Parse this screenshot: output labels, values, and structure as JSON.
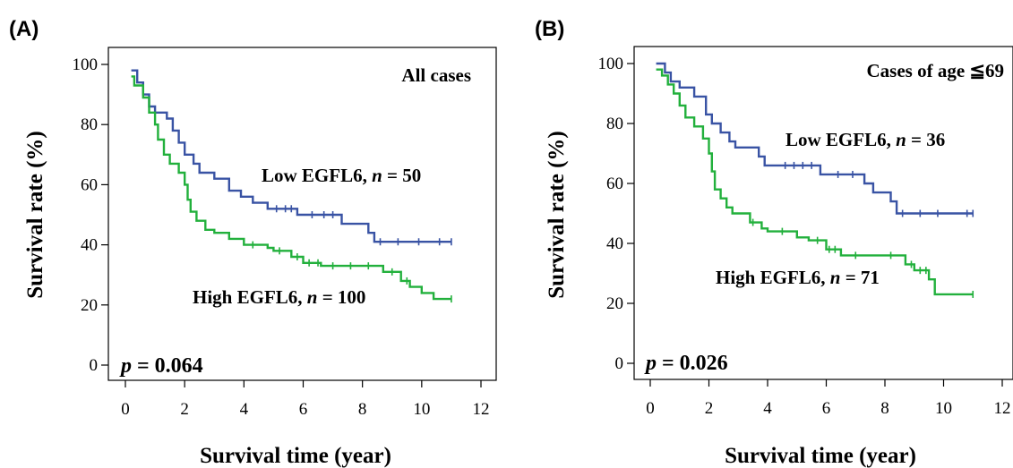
{
  "colors": {
    "low": "#3953a4",
    "high": "#22b03c",
    "axis": "#000000"
  },
  "chart_data": [
    {
      "type": "line",
      "panel_label": "(A)",
      "xlabel": "Survival time (year)",
      "ylabel": "Survival rate (%)",
      "xlim": [
        0,
        12
      ],
      "ylim": [
        0,
        100
      ],
      "x_ticks": [
        0,
        2,
        4,
        6,
        8,
        10,
        12
      ],
      "y_ticks": [
        0,
        20,
        40,
        60,
        80,
        100
      ],
      "grid": false,
      "annotations": {
        "subset": "All cases",
        "p_prefix": "p",
        "p_value": "= 0.064"
      },
      "series": [
        {
          "name": "Low EGFL6",
          "label_name": "Low EGFL6, ",
          "label_n": "n",
          "label_count": " = 50",
          "key": "low",
          "points": [
            [
              0.2,
              98
            ],
            [
              0.4,
              94
            ],
            [
              0.6,
              90
            ],
            [
              0.8,
              86
            ],
            [
              1.0,
              84
            ],
            [
              1.4,
              82
            ],
            [
              1.6,
              78
            ],
            [
              1.8,
              74
            ],
            [
              2.0,
              70
            ],
            [
              2.3,
              67
            ],
            [
              2.5,
              64
            ],
            [
              3.0,
              62
            ],
            [
              3.5,
              58
            ],
            [
              3.9,
              56
            ],
            [
              4.3,
              54
            ],
            [
              4.8,
              52
            ],
            [
              5.8,
              50
            ],
            [
              7.3,
              47
            ],
            [
              8.2,
              44
            ],
            [
              8.4,
              41
            ],
            [
              11.0,
              41
            ]
          ],
          "censors": [
            [
              5.1,
              52
            ],
            [
              5.4,
              52
            ],
            [
              5.6,
              52
            ],
            [
              6.3,
              50
            ],
            [
              6.7,
              50
            ],
            [
              7.0,
              50
            ],
            [
              8.6,
              41
            ],
            [
              9.2,
              41
            ],
            [
              9.9,
              41
            ],
            [
              10.6,
              41
            ],
            [
              11.0,
              41
            ]
          ]
        },
        {
          "name": "High EGFL6",
          "label_name": "High EGFL6, ",
          "label_n": "n",
          "label_count": " = 100",
          "key": "high",
          "points": [
            [
              0.2,
              96
            ],
            [
              0.3,
              93
            ],
            [
              0.6,
              89
            ],
            [
              0.8,
              84
            ],
            [
              1.0,
              80
            ],
            [
              1.1,
              75
            ],
            [
              1.3,
              70
            ],
            [
              1.5,
              67
            ],
            [
              1.8,
              64
            ],
            [
              2.0,
              60
            ],
            [
              2.1,
              55
            ],
            [
              2.2,
              51
            ],
            [
              2.4,
              48
            ],
            [
              2.7,
              45
            ],
            [
              3.0,
              44
            ],
            [
              3.5,
              42
            ],
            [
              4.0,
              40
            ],
            [
              4.8,
              39
            ],
            [
              5.0,
              38
            ],
            [
              5.6,
              36
            ],
            [
              6.0,
              34
            ],
            [
              6.6,
              33
            ],
            [
              8.7,
              31
            ],
            [
              9.3,
              28
            ],
            [
              9.6,
              26
            ],
            [
              10.0,
              24
            ],
            [
              10.4,
              22
            ],
            [
              11.0,
              22
            ]
          ],
          "censors": [
            [
              4.3,
              40
            ],
            [
              5.2,
              38
            ],
            [
              5.8,
              36
            ],
            [
              6.2,
              34
            ],
            [
              6.5,
              34
            ],
            [
              7.0,
              33
            ],
            [
              7.6,
              33
            ],
            [
              8.2,
              33
            ],
            [
              9.0,
              31
            ],
            [
              9.5,
              28
            ],
            [
              11.0,
              22
            ]
          ]
        }
      ]
    },
    {
      "type": "line",
      "panel_label": "(B)",
      "xlabel": "Survival time (year)",
      "ylabel": "Survival rate (%)",
      "xlim": [
        0,
        12
      ],
      "ylim": [
        0,
        100
      ],
      "x_ticks": [
        0,
        2,
        4,
        6,
        8,
        10,
        12
      ],
      "y_ticks": [
        0,
        20,
        40,
        60,
        80,
        100
      ],
      "grid": false,
      "annotations": {
        "subset": "Cases of age ≦69",
        "p_prefix": "p",
        "p_value": "= 0.026"
      },
      "series": [
        {
          "name": "Low EGFL6",
          "label_name": "Low EGFL6, ",
          "label_n": "n",
          "label_count": " = 36",
          "key": "low",
          "points": [
            [
              0.2,
              100
            ],
            [
              0.5,
              97
            ],
            [
              0.7,
              94
            ],
            [
              1.0,
              92
            ],
            [
              1.5,
              89
            ],
            [
              1.9,
              83
            ],
            [
              2.1,
              80
            ],
            [
              2.4,
              77
            ],
            [
              2.7,
              74
            ],
            [
              2.9,
              72
            ],
            [
              3.7,
              69
            ],
            [
              3.9,
              66
            ],
            [
              5.8,
              63
            ],
            [
              7.3,
              60
            ],
            [
              7.6,
              57
            ],
            [
              8.2,
              54
            ],
            [
              8.4,
              50
            ],
            [
              11.0,
              50
            ]
          ],
          "censors": [
            [
              4.6,
              66
            ],
            [
              4.9,
              66
            ],
            [
              5.2,
              66
            ],
            [
              5.5,
              66
            ],
            [
              6.4,
              63
            ],
            [
              6.9,
              63
            ],
            [
              8.6,
              50
            ],
            [
              9.2,
              50
            ],
            [
              9.8,
              50
            ],
            [
              10.8,
              50
            ],
            [
              11.0,
              50
            ]
          ]
        },
        {
          "name": "High EGFL6",
          "label_name": "High EGFL6, ",
          "label_n": "n",
          "label_count": " = 71",
          "key": "high",
          "points": [
            [
              0.2,
              98
            ],
            [
              0.4,
              96
            ],
            [
              0.6,
              93
            ],
            [
              0.8,
              90
            ],
            [
              1.0,
              86
            ],
            [
              1.2,
              82
            ],
            [
              1.5,
              79
            ],
            [
              1.8,
              75
            ],
            [
              2.0,
              70
            ],
            [
              2.1,
              64
            ],
            [
              2.2,
              58
            ],
            [
              2.4,
              55
            ],
            [
              2.6,
              52
            ],
            [
              2.8,
              50
            ],
            [
              3.4,
              47
            ],
            [
              3.8,
              45
            ],
            [
              4.0,
              44
            ],
            [
              5.0,
              42
            ],
            [
              5.4,
              41
            ],
            [
              6.0,
              38
            ],
            [
              6.5,
              36
            ],
            [
              8.7,
              33
            ],
            [
              9.0,
              31
            ],
            [
              9.5,
              28
            ],
            [
              9.7,
              23
            ],
            [
              11.0,
              23
            ]
          ],
          "censors": [
            [
              3.5,
              47
            ],
            [
              4.5,
              44
            ],
            [
              5.7,
              41
            ],
            [
              6.1,
              38
            ],
            [
              6.3,
              38
            ],
            [
              7.0,
              36
            ],
            [
              8.2,
              36
            ],
            [
              8.9,
              33
            ],
            [
              9.2,
              31
            ],
            [
              9.4,
              31
            ],
            [
              11.0,
              23
            ]
          ]
        }
      ]
    }
  ]
}
